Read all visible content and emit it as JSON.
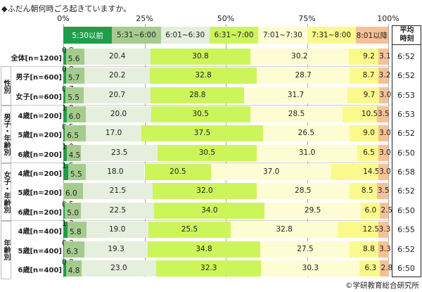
{
  "chart_data": {
    "type": "bar",
    "orientation": "horizontal",
    "stacked": true,
    "title": "◆ふだん朝何時ごろ起きていますか。",
    "xlim": [
      0,
      100
    ],
    "ticks": [
      "0%",
      "25%",
      "50%",
      "75%",
      "100%"
    ],
    "legend": [
      "5:30以前",
      "5:31~6:00",
      "6:01~6:30",
      "6:31~7:00",
      "7:01~7:30",
      "7:31~8:00",
      "8:01以降"
    ],
    "legend_placement": "top",
    "colors": [
      "#1e9e4a",
      "#a5cc8e",
      "#e6eedd",
      "#ccf55a",
      "#fefcd2",
      "#fbf98c",
      "#f7c195"
    ],
    "avg_header": "平均時刻",
    "groups": [
      {
        "label": "性別",
        "rows": [
          1,
          2
        ]
      },
      {
        "label": "男子・年齢別",
        "rows": [
          3,
          4,
          5
        ]
      },
      {
        "label": "女子・年齢別",
        "rows": [
          6,
          7,
          8
        ]
      },
      {
        "label": "年齢別",
        "rows": [
          9,
          10,
          11
        ]
      }
    ],
    "rows": [
      {
        "label": "全体[n=1200]",
        "values": [
          0.8,
          5.6,
          20.4,
          30.8,
          30.2,
          9.2,
          3.1
        ],
        "avg": "6:52"
      },
      {
        "label": "男子[n=600]",
        "values": [
          0.8,
          5.7,
          20.2,
          32.8,
          28.7,
          8.7,
          3.2
        ],
        "avg": "6:52"
      },
      {
        "label": "女子[n=600]",
        "values": [
          0.7,
          5.5,
          20.7,
          28.8,
          31.7,
          9.7,
          3.0
        ],
        "avg": "6:53"
      },
      {
        "label": "4歳[n=200]",
        "values": [
          1.0,
          6.0,
          20.0,
          30.5,
          28.5,
          10.5,
          3.5
        ],
        "avg": "6:53"
      },
      {
        "label": "5歳[n=200]",
        "values": [
          0.5,
          6.5,
          17.0,
          37.5,
          26.5,
          9.0,
          3.0
        ],
        "avg": "6:52"
      },
      {
        "label": "6歳[n=200]",
        "values": [
          1.0,
          4.5,
          23.5,
          30.5,
          31.0,
          6.5,
          3.0
        ],
        "avg": "6:50"
      },
      {
        "label": "4歳[n=200]",
        "values": [
          1.5,
          5.5,
          18.0,
          20.5,
          37.0,
          14.5,
          3.0
        ],
        "avg": "6:58"
      },
      {
        "label": "5歳[n=200]",
        "values": [
          0.0,
          6.0,
          21.5,
          32.0,
          28.5,
          8.5,
          3.5
        ],
        "avg": "6:52"
      },
      {
        "label": "6歳[n=200]",
        "values": [
          0.5,
          5.0,
          22.5,
          34.0,
          29.5,
          6.0,
          2.5
        ],
        "avg": "6:50"
      },
      {
        "label": "4歳[n=400]",
        "values": [
          1.3,
          5.8,
          19.0,
          25.5,
          32.8,
          12.5,
          3.3
        ],
        "avg": "6:55"
      },
      {
        "label": "5歳[n=400]",
        "values": [
          0.3,
          6.3,
          19.3,
          34.8,
          27.5,
          8.8,
          3.3
        ],
        "avg": "6:52"
      },
      {
        "label": "6歳[n=400]",
        "values": [
          0.8,
          4.8,
          23.0,
          32.3,
          30.3,
          6.3,
          2.8
        ],
        "avg": "6:50"
      }
    ],
    "source": "©学研教育総合研究所"
  }
}
